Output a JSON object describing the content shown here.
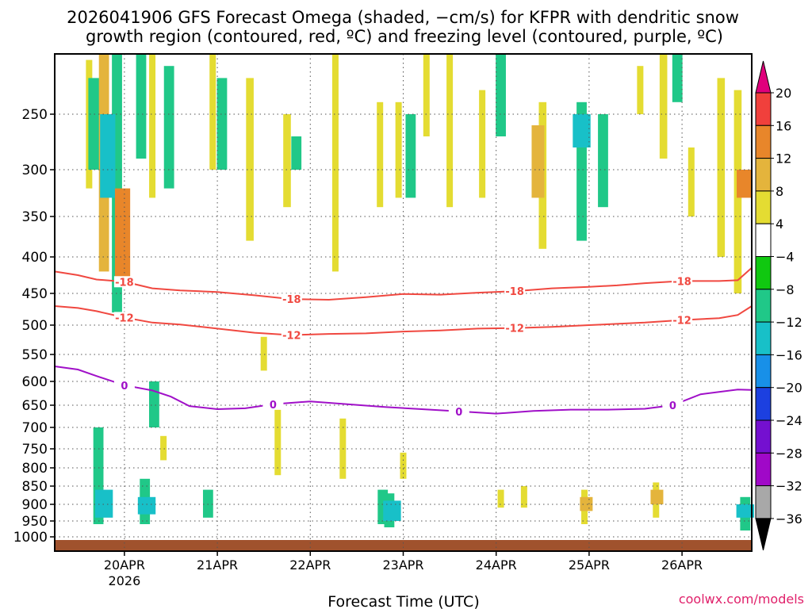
{
  "chart_data": {
    "type": "heatmap",
    "title_line1": "2026041906 GFS Forecast Omega (shaded, −cm/s) for KFPR with dendritic snow",
    "title_line2": "growth region (contoured, red, ºC) and freezing level (contoured, purple, ºC)",
    "xlabel": "Forecast Time (UTC)",
    "credit": "coolwx.com/models",
    "x_ticks": [
      "20APR",
      "21APR",
      "22APR",
      "23APR",
      "24APR",
      "25APR",
      "26APR"
    ],
    "x_tick_sub": "2026",
    "x_range_days": [
      19.25,
      26.75
    ],
    "y_ticks": [
      250,
      300,
      350,
      400,
      450,
      500,
      550,
      600,
      650,
      700,
      750,
      800,
      850,
      900,
      950,
      1000
    ],
    "y_range_hpa": [
      200,
      1025
    ],
    "colorbar_levels": [
      "20",
      "16",
      "12",
      "8",
      "4",
      "−4",
      "−8",
      "−12",
      "−16",
      "−20",
      "−24",
      "−28",
      "−32",
      "−36"
    ],
    "colorbar_colors": [
      "#e0007c",
      "#f0403c",
      "#e8862a",
      "#e4b43c",
      "#e4dc32",
      "#ffffff",
      "#10c810",
      "#20c888",
      "#18c0c8",
      "#1890e8",
      "#1c40e0",
      "#7410d0",
      "#a008c8",
      "#a8a8a8",
      "#000000"
    ],
    "colors": {
      "snow_growth_contour": "#f04840",
      "freezing_contour": "#a010c8",
      "ground": "#a0522d"
    },
    "contours": [
      {
        "name": "-18",
        "color": "red",
        "labels": [
          "-18",
          "-18",
          "-18",
          "-18"
        ],
        "x": [
          19.25,
          19.5,
          19.7,
          20.0,
          20.3,
          20.6,
          21.0,
          21.4,
          21.8,
          22.2,
          22.6,
          23.0,
          23.4,
          23.8,
          24.2,
          24.6,
          25.0,
          25.3,
          25.6,
          26.0,
          26.4,
          26.6,
          26.75
        ],
        "p": [
          420,
          425,
          431,
          434,
          443,
          446,
          448,
          453,
          459,
          460,
          456,
          451,
          452,
          449,
          447,
          443,
          441,
          439,
          436,
          433,
          433,
          432,
          415
        ]
      },
      {
        "name": "-12",
        "color": "red",
        "labels": [
          "-12",
          "-12",
          "-12",
          "-12"
        ],
        "x": [
          19.25,
          19.5,
          19.7,
          20.0,
          20.3,
          20.6,
          21.0,
          21.4,
          21.8,
          22.2,
          22.6,
          23.0,
          23.4,
          23.8,
          24.2,
          24.6,
          25.0,
          25.3,
          25.6,
          26.0,
          26.4,
          26.6,
          26.75
        ],
        "p": [
          470,
          473,
          478,
          488,
          496,
          499,
          506,
          513,
          517,
          515,
          514,
          511,
          509,
          506,
          505,
          503,
          500,
          498,
          496,
          492,
          489,
          484,
          470
        ]
      },
      {
        "name": "0",
        "color": "purple",
        "labels": [
          "0",
          "0",
          "0",
          "0"
        ],
        "x": [
          19.25,
          19.5,
          19.7,
          20.0,
          20.3,
          20.5,
          20.7,
          21.0,
          21.3,
          21.6,
          22.0,
          22.4,
          22.8,
          23.2,
          23.6,
          24.0,
          24.4,
          24.8,
          25.2,
          25.6,
          25.9,
          26.2,
          26.6,
          26.75
        ],
        "p": [
          572,
          578,
          590,
          608,
          619,
          632,
          652,
          659,
          657,
          648,
          642,
          648,
          654,
          659,
          664,
          669,
          663,
          660,
          660,
          658,
          650,
          627,
          617,
          618
        ]
      }
    ],
    "omega_regions": [
      {
        "x": 19.62,
        "p": [
          205,
          320
        ],
        "v": 4
      },
      {
        "x": 19.68,
        "p": [
          220,
          300
        ],
        "v": -10
      },
      {
        "x": 19.78,
        "p": [
          200,
          420
        ],
        "v": 8
      },
      {
        "x": 19.92,
        "p": [
          200,
          480
        ],
        "v": -8
      },
      {
        "x": 19.82,
        "p": [
          250,
          330
        ],
        "v": -12
      },
      {
        "x": 19.98,
        "p": [
          320,
          440
        ],
        "v": 12
      },
      {
        "x": 20.18,
        "p": [
          200,
          290
        ],
        "v": -8
      },
      {
        "x": 20.3,
        "p": [
          200,
          330
        ],
        "v": 4
      },
      {
        "x": 20.48,
        "p": [
          210,
          320
        ],
        "v": -8
      },
      {
        "x": 20.95,
        "p": [
          200,
          300
        ],
        "v": 4
      },
      {
        "x": 21.05,
        "p": [
          220,
          300
        ],
        "v": -8
      },
      {
        "x": 21.35,
        "p": [
          220,
          380
        ],
        "v": 6
      },
      {
        "x": 21.75,
        "p": [
          250,
          340
        ],
        "v": 6
      },
      {
        "x": 21.85,
        "p": [
          270,
          300
        ],
        "v": -8
      },
      {
        "x": 22.27,
        "p": [
          200,
          420
        ],
        "v": 5
      },
      {
        "x": 22.75,
        "p": [
          240,
          340
        ],
        "v": 5
      },
      {
        "x": 22.95,
        "p": [
          240,
          330
        ],
        "v": 5
      },
      {
        "x": 23.08,
        "p": [
          250,
          330
        ],
        "v": -8
      },
      {
        "x": 23.25,
        "p": [
          200,
          270
        ],
        "v": 5
      },
      {
        "x": 23.5,
        "p": [
          200,
          340
        ],
        "v": 4
      },
      {
        "x": 23.85,
        "p": [
          230,
          330
        ],
        "v": 4
      },
      {
        "x": 24.05,
        "p": [
          200,
          270
        ],
        "v": -8
      },
      {
        "x": 24.5,
        "p": [
          240,
          390
        ],
        "v": 6
      },
      {
        "x": 24.45,
        "p": [
          260,
          330
        ],
        "v": 10
      },
      {
        "x": 24.92,
        "p": [
          240,
          380
        ],
        "v": -8
      },
      {
        "x": 24.92,
        "p": [
          250,
          280
        ],
        "v": -14
      },
      {
        "x": 25.15,
        "p": [
          250,
          340
        ],
        "v": -8
      },
      {
        "x": 25.55,
        "p": [
          210,
          250
        ],
        "v": 4
      },
      {
        "x": 25.8,
        "p": [
          200,
          290
        ],
        "v": 6
      },
      {
        "x": 25.95,
        "p": [
          200,
          240
        ],
        "v": -8
      },
      {
        "x": 26.1,
        "p": [
          280,
          350
        ],
        "v": 4
      },
      {
        "x": 26.42,
        "p": [
          220,
          400
        ],
        "v": 6
      },
      {
        "x": 26.6,
        "p": [
          230,
          450
        ],
        "v": 6
      },
      {
        "x": 26.67,
        "p": [
          300,
          330
        ],
        "v": 12
      },
      {
        "x": 19.72,
        "p": [
          700,
          960
        ],
        "v": -8
      },
      {
        "x": 19.78,
        "p": [
          860,
          940
        ],
        "v": -14
      },
      {
        "x": 20.22,
        "p": [
          830,
          960
        ],
        "v": -8
      },
      {
        "x": 20.24,
        "p": [
          880,
          930
        ],
        "v": -14
      },
      {
        "x": 20.32,
        "p": [
          600,
          700
        ],
        "v": -8
      },
      {
        "x": 20.42,
        "p": [
          720,
          780
        ],
        "v": 4
      },
      {
        "x": 20.9,
        "p": [
          860,
          940
        ],
        "v": -8
      },
      {
        "x": 21.5,
        "p": [
          520,
          580
        ],
        "v": 4
      },
      {
        "x": 21.65,
        "p": [
          660,
          820
        ],
        "v": 4
      },
      {
        "x": 22.35,
        "p": [
          680,
          830
        ],
        "v": 4
      },
      {
        "x": 22.78,
        "p": [
          860,
          960
        ],
        "v": -8
      },
      {
        "x": 22.85,
        "p": [
          870,
          970
        ],
        "v": -8
      },
      {
        "x": 22.88,
        "p": [
          890,
          950
        ],
        "v": -14
      },
      {
        "x": 23.0,
        "p": [
          760,
          830
        ],
        "v": 4
      },
      {
        "x": 24.05,
        "p": [
          860,
          910
        ],
        "v": 4
      },
      {
        "x": 24.3,
        "p": [
          850,
          910
        ],
        "v": 4
      },
      {
        "x": 24.95,
        "p": [
          860,
          960
        ],
        "v": 5
      },
      {
        "x": 24.97,
        "p": [
          880,
          920
        ],
        "v": 10
      },
      {
        "x": 25.72,
        "p": [
          840,
          940
        ],
        "v": 5
      },
      {
        "x": 25.73,
        "p": [
          860,
          900
        ],
        "v": 10
      },
      {
        "x": 26.68,
        "p": [
          880,
          980
        ],
        "v": -8
      },
      {
        "x": 26.68,
        "p": [
          900,
          940
        ],
        "v": -14
      }
    ]
  }
}
